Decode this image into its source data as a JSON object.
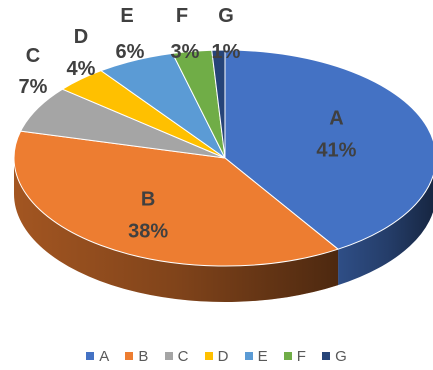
{
  "chart_data": {
    "type": "pie",
    "style": "3d",
    "categories": [
      "A",
      "B",
      "C",
      "D",
      "E",
      "F",
      "G"
    ],
    "values": [
      41,
      38,
      7,
      4,
      6,
      3,
      1
    ],
    "labels": [
      "41%",
      "38%",
      "7%",
      "4%",
      "6%",
      "3%",
      "1%"
    ],
    "colors": [
      "#4472C4",
      "#ED7D31",
      "#A5A5A5",
      "#FFC000",
      "#5B9BD5",
      "#70AD47",
      "#264478"
    ],
    "legend_position": "bottom"
  }
}
